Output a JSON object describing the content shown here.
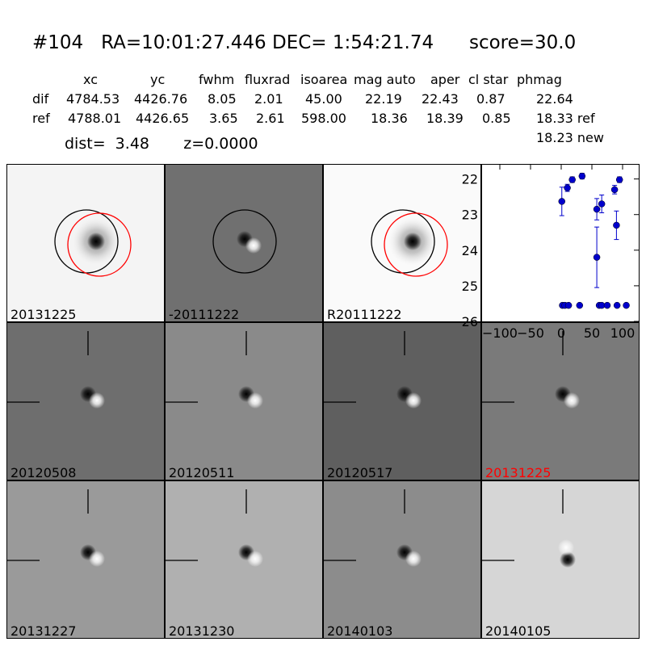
{
  "header": {
    "title": "#104   RA=10:01:27.446 DEC= 1:54:21.74      score=30.0"
  },
  "stats_table": {
    "columns": [
      "xc",
      "yc",
      "fwhm",
      "fluxrad",
      "isoarea",
      "mag auto",
      "aper",
      "cl star",
      "phmag"
    ],
    "rows": [
      {
        "label": "dif",
        "values": [
          "4784.53",
          "4426.76",
          "8.05",
          "2.01",
          "45.00",
          "22.19",
          "22.43",
          "0.87",
          "22.64"
        ]
      },
      {
        "label": "ref",
        "values": [
          "4788.01",
          "4426.65",
          "3.65",
          "2.61",
          "598.00",
          "18.36",
          "18.39",
          "0.85",
          "18.33 ref"
        ]
      }
    ],
    "extra_phmag": "18.23 new",
    "dist_line": "dist=  3.48       z=0.0000"
  },
  "colors": {
    "accent_red": "#ff0000",
    "marker_blue": "#0000cc"
  },
  "tiles": [
    {
      "label": "20131225",
      "bg": "#f4f4f4",
      "kind": "new",
      "circles": true
    },
    {
      "label": "-20111222",
      "bg": "#707070",
      "kind": "dif",
      "circles": true
    },
    {
      "label": "R20111222",
      "bg": "#fafafa",
      "kind": "ref",
      "circles": true
    },
    null,
    {
      "label": "20120508",
      "bg": "#6e6e6e",
      "kind": "dipole",
      "ticks": true
    },
    {
      "label": "20120511",
      "bg": "#8a8a8a",
      "kind": "dipole",
      "ticks": true
    },
    {
      "label": "20120517",
      "bg": "#5f5f5f",
      "kind": "dipole",
      "ticks": true
    },
    {
      "label": "20131225",
      "bg": "#7a7a7a",
      "kind": "dipole",
      "ticks": true,
      "label_color": "#ff0000"
    },
    {
      "label": "20131227",
      "bg": "#9a9a9a",
      "kind": "dipole",
      "ticks": true
    },
    {
      "label": "20131230",
      "bg": "#b0b0b0",
      "kind": "dipole",
      "ticks": true
    },
    {
      "label": "20140103",
      "bg": "#8c8c8c",
      "kind": "dipole",
      "ticks": true
    },
    {
      "label": "20140105",
      "bg": "#d6d6d6",
      "kind": "dipole_inv",
      "ticks": true
    }
  ],
  "chart_data": {
    "type": "scatter",
    "title": "",
    "xlabel": "",
    "ylabel": "",
    "xlim": [
      -125,
      125
    ],
    "ylim": [
      26,
      21.6
    ],
    "xticks": [
      -100,
      -50,
      0,
      50,
      100
    ],
    "yticks": [
      22,
      23,
      24,
      25,
      26
    ],
    "series": [
      {
        "points": [
          {
            "x": 1,
            "y": 22.63,
            "err": 0.4
          },
          {
            "x": 10,
            "y": 22.25,
            "err": 0.1
          },
          {
            "x": 18,
            "y": 22.02,
            "err": 0.08
          },
          {
            "x": 34,
            "y": 21.92,
            "err": 0.08
          },
          {
            "x": 58,
            "y": 22.85,
            "err": 0.3
          },
          {
            "x": 66,
            "y": 22.7,
            "err": 0.25
          },
          {
            "x": 58,
            "y": 24.2,
            "err": 0.85
          },
          {
            "x": 87,
            "y": 22.3,
            "err": 0.12
          },
          {
            "x": 95,
            "y": 22.02,
            "err": 0.08
          },
          {
            "x": 90,
            "y": 23.3,
            "err": 0.4
          },
          {
            "x": 2,
            "y": 25.55,
            "err": 0
          },
          {
            "x": 6,
            "y": 25.55,
            "err": 0
          },
          {
            "x": 12,
            "y": 25.55,
            "err": 0
          },
          {
            "x": 30,
            "y": 25.55,
            "err": 0
          },
          {
            "x": 62,
            "y": 25.55,
            "err": 0
          },
          {
            "x": 66,
            "y": 25.55,
            "err": 0
          },
          {
            "x": 75,
            "y": 25.55,
            "err": 0
          },
          {
            "x": 91,
            "y": 25.55,
            "err": 0
          },
          {
            "x": 106,
            "y": 25.55,
            "err": 0
          }
        ]
      }
    ]
  }
}
